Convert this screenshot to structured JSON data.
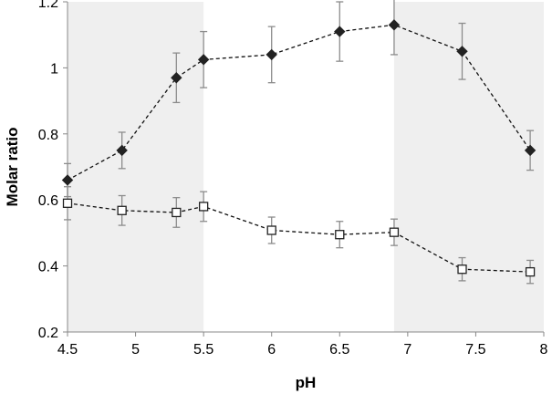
{
  "chart_data": {
    "type": "line",
    "title": "",
    "xlabel": "pH",
    "ylabel": "Molar ratio",
    "xlim": [
      4.5,
      8
    ],
    "ylim": [
      0.2,
      1.2
    ],
    "x_ticks": [
      "4.5",
      "5",
      "5.5",
      "6",
      "6.5",
      "7",
      "7.5",
      "8"
    ],
    "y_ticks": [
      "0.2",
      "0.4",
      "0.6",
      "0.8",
      "1",
      "1.2"
    ],
    "x_tick_values": [
      4.5,
      5,
      5.5,
      6,
      6.5,
      7,
      7.5,
      8
    ],
    "y_tick_values": [
      0.2,
      0.4,
      0.6,
      0.8,
      1,
      1.2
    ],
    "shaded_bands": [
      [
        4.5,
        5.5
      ],
      [
        6.9,
        8
      ]
    ],
    "grid": false,
    "colors": {
      "band": "#efefef",
      "marker": "#222222",
      "error_bar": "#8c8c8c",
      "line": "#111111"
    },
    "series": [
      {
        "name": "filled diamonds",
        "marker": "diamond",
        "x": [
          4.5,
          4.9,
          5.3,
          5.5,
          6.0,
          6.5,
          6.9,
          7.4,
          7.9
        ],
        "y": [
          0.66,
          0.75,
          0.97,
          1.025,
          1.04,
          1.11,
          1.13,
          1.05,
          0.75
        ],
        "error": [
          0.05,
          0.055,
          0.075,
          0.085,
          0.085,
          0.09,
          0.09,
          0.085,
          0.06
        ]
      },
      {
        "name": "open squares",
        "marker": "square",
        "x": [
          4.5,
          4.9,
          5.3,
          5.5,
          6.0,
          6.5,
          6.9,
          7.4,
          7.9
        ],
        "y": [
          0.59,
          0.568,
          0.562,
          0.58,
          0.508,
          0.495,
          0.502,
          0.39,
          0.382
        ],
        "error": [
          0.05,
          0.045,
          0.045,
          0.045,
          0.04,
          0.04,
          0.04,
          0.035,
          0.035
        ]
      }
    ]
  }
}
